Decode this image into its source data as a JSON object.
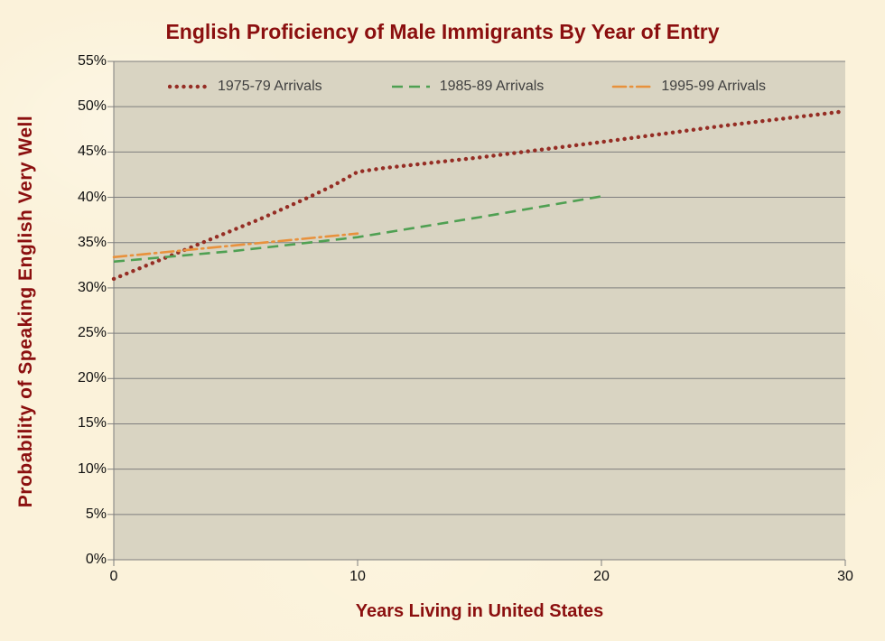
{
  "title": "English Proficiency of Male Immigrants By Year of Entry",
  "colors": {
    "background": "#FBF2DA",
    "plot_bg": "#D9D4C2",
    "gridline": "#7E7E7E",
    "axis": "#7E7E7E",
    "title_text": "#8B0F0F",
    "tick_text": "#111111",
    "legend_text": "#3F3F3F",
    "series_red": "#952D24",
    "series_green": "#4FA052",
    "series_orange": "#E8913C"
  },
  "chart_data": {
    "type": "line",
    "title": "English Proficiency of Male Immigrants By Year of Entry",
    "xlabel": "Years Living in United States",
    "ylabel": "Probability of Speaking English Very Well",
    "xlim": [
      0,
      30
    ],
    "ylim": [
      0,
      55
    ],
    "xticks": [
      0,
      10,
      20,
      30
    ],
    "xtick_labels": [
      "0",
      "10",
      "20",
      "30"
    ],
    "ytick_step": 5,
    "ytick_labels": [
      "0%",
      "5%",
      "10%",
      "15%",
      "20%",
      "25%",
      "30%",
      "35%",
      "40%",
      "45%",
      "50%",
      "55%"
    ],
    "grid": "horizontal-only",
    "legend_position": "top-inside",
    "series": [
      {
        "name": "1975-79 Arrivals",
        "color": "#952D24",
        "style": "dotted",
        "points": [
          [
            0,
            31.0
          ],
          [
            3,
            34.3
          ],
          [
            6,
            37.6
          ],
          [
            8,
            40.0
          ],
          [
            9,
            41.3
          ],
          [
            10,
            42.8
          ],
          [
            11,
            43.2
          ],
          [
            13,
            43.8
          ],
          [
            15,
            44.4
          ],
          [
            20,
            46.1
          ],
          [
            25,
            47.9
          ],
          [
            30,
            49.5
          ]
        ]
      },
      {
        "name": "1985-89 Arrivals",
        "color": "#4FA052",
        "style": "dashed",
        "points": [
          [
            0,
            32.9
          ],
          [
            5,
            34.1
          ],
          [
            10,
            35.6
          ],
          [
            15,
            37.8
          ],
          [
            20,
            40.1
          ]
        ]
      },
      {
        "name": "1995-99 Arrivals",
        "color": "#E8913C",
        "style": "dash-dot",
        "points": [
          [
            0,
            33.4
          ],
          [
            5,
            34.7
          ],
          [
            10,
            36.0
          ]
        ]
      }
    ]
  }
}
